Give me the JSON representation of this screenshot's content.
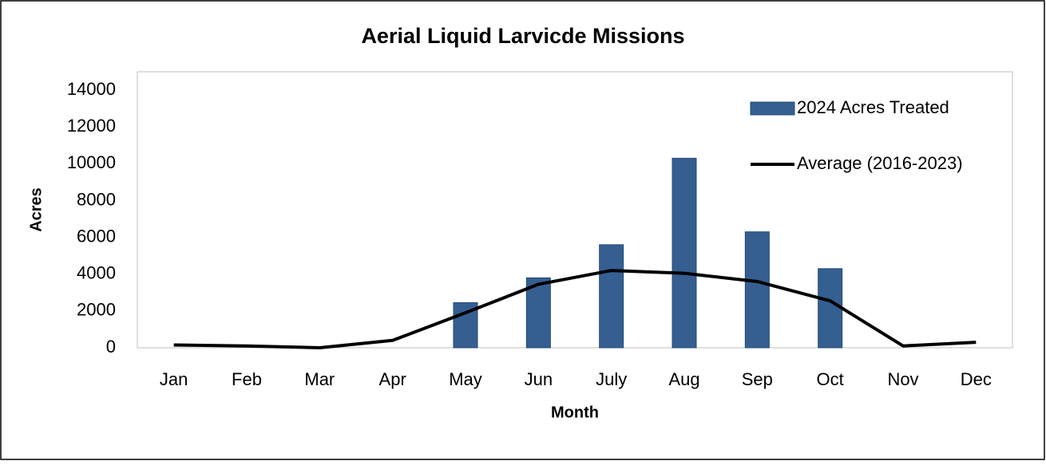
{
  "chart_data": {
    "type": "bar",
    "title": "Aerial Liquid Larvicde Missions",
    "x_label": "Month",
    "y_label": "Acres",
    "categories": [
      "Jan",
      "Feb",
      "Mar",
      "Apr",
      "May",
      "Jun",
      "July",
      "Aug",
      "Sep",
      "Oct",
      "Nov",
      "Dec"
    ],
    "series": [
      {
        "name": "2024 Acres Treated",
        "type": "bar",
        "color": "#355f91",
        "values": [
          0,
          0,
          0,
          0,
          2450,
          3800,
          5600,
          10300,
          6300,
          4300,
          0,
          0
        ]
      },
      {
        "name": "Average (2016-2023)",
        "type": "line",
        "color": "#000000",
        "values": [
          150,
          100,
          0,
          400,
          1900,
          3450,
          4200,
          4050,
          3600,
          2550,
          100,
          300
        ]
      }
    ],
    "ylim": [
      0,
      15000
    ],
    "yticks": [
      0,
      2000,
      4000,
      6000,
      8000,
      10000,
      12000,
      14000
    ],
    "grid": false,
    "legend": "upper right"
  }
}
